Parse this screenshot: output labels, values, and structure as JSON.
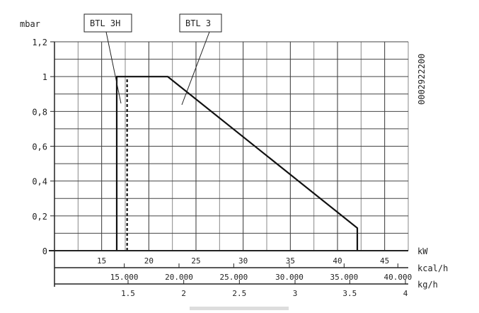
{
  "chart_data": {
    "type": "line",
    "y_unit": "mbar",
    "ylim": [
      0,
      1.2
    ],
    "yticks": [
      {
        "value": 0,
        "label": "0"
      },
      {
        "value": 0.2,
        "label": "0,2"
      },
      {
        "value": 0.4,
        "label": "0,4"
      },
      {
        "value": 0.6,
        "label": "0,6"
      },
      {
        "value": 0.8,
        "label": "0,8"
      },
      {
        "value": 1.0,
        "label": "1"
      },
      {
        "value": 1.2,
        "label": "1,2"
      }
    ],
    "xlim": [
      10,
      47.5
    ],
    "grid": true,
    "x_axes": [
      {
        "unit": "kW",
        "ticks": [
          {
            "value": 15,
            "label": "15"
          },
          {
            "value": 20,
            "label": "20"
          },
          {
            "value": 25,
            "label": "25"
          },
          {
            "value": 30,
            "label": "30"
          },
          {
            "value": 35,
            "label": "35"
          },
          {
            "value": 40,
            "label": "40"
          },
          {
            "value": 45,
            "label": "45"
          }
        ]
      },
      {
        "unit": "kcal/h",
        "ticks": [
          {
            "kw": 17.4,
            "label": "15.000"
          },
          {
            "kw": 23.2,
            "label": "20.000"
          },
          {
            "kw": 29.0,
            "label": "25.000"
          },
          {
            "kw": 34.9,
            "label": "30.000"
          },
          {
            "kw": 40.7,
            "label": "35.000"
          },
          {
            "kw": 46.4,
            "label": "40.000"
          }
        ]
      },
      {
        "unit": "kg/h",
        "ticks": [
          {
            "kw": 17.8,
            "label": "1.5"
          },
          {
            "kw": 23.7,
            "label": "2"
          },
          {
            "kw": 29.6,
            "label": "2.5"
          },
          {
            "kw": 35.5,
            "label": "3"
          },
          {
            "kw": 41.3,
            "label": "3.5"
          },
          {
            "kw": 47.2,
            "label": "4"
          }
        ]
      }
    ],
    "series": [
      {
        "name": "BTL 3H",
        "style": "dashed",
        "points": [
          [
            17.7,
            0
          ],
          [
            17.7,
            1.0
          ]
        ]
      },
      {
        "name": "BTL 3",
        "style": "solid",
        "points": [
          [
            16.6,
            0
          ],
          [
            16.6,
            1.0
          ],
          [
            22.0,
            1.0
          ],
          [
            42.1,
            0.13
          ],
          [
            42.1,
            0
          ]
        ]
      }
    ],
    "labels": [
      "BTL 3H",
      "BTL 3"
    ],
    "code": "0002922200"
  }
}
